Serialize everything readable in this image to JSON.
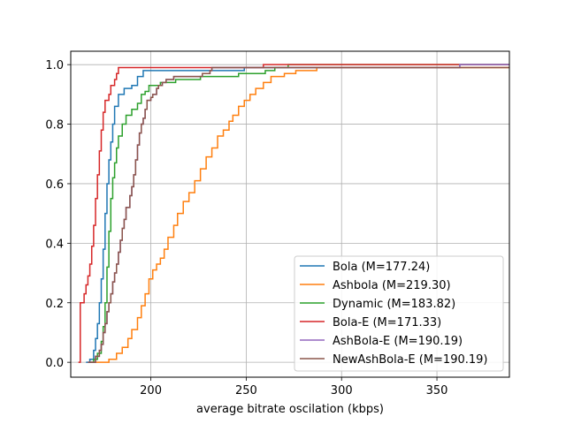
{
  "chart_data": {
    "type": "line",
    "subtype": "step-ecdf",
    "xlabel": "average bitrate oscilation (kbps)",
    "ylabel": "",
    "xlim": [
      158,
      388
    ],
    "ylim": [
      -0.05,
      1.045
    ],
    "xticks": [
      200,
      250,
      300,
      350
    ],
    "yticks": [
      0.0,
      0.2,
      0.4,
      0.6,
      0.8,
      1.0
    ],
    "ytick_labels": [
      "0.0",
      "0.2",
      "0.4",
      "0.6",
      "0.8",
      "1.0"
    ],
    "grid": true,
    "legend_position": "lower-right",
    "series": [
      {
        "name": "Bola (M=177.24)",
        "color": "#1f77b4",
        "points": [
          [
            166,
            0.0
          ],
          [
            168,
            0.01
          ],
          [
            170,
            0.04
          ],
          [
            171,
            0.08
          ],
          [
            172,
            0.13
          ],
          [
            173,
            0.2
          ],
          [
            174,
            0.28
          ],
          [
            175,
            0.38
          ],
          [
            176,
            0.5
          ],
          [
            177,
            0.6
          ],
          [
            178,
            0.68
          ],
          [
            179,
            0.74
          ],
          [
            180,
            0.8
          ],
          [
            181,
            0.86
          ],
          [
            183,
            0.9
          ],
          [
            186,
            0.92
          ],
          [
            190,
            0.93
          ],
          [
            193,
            0.96
          ],
          [
            196,
            0.98
          ],
          [
            205,
            0.98
          ],
          [
            249,
            0.99
          ],
          [
            362,
            1.0
          ],
          [
            388,
            1.0
          ]
        ]
      },
      {
        "name": "Ashbola (M=219.30)",
        "color": "#ff7f0e",
        "points": [
          [
            168,
            0.0
          ],
          [
            178,
            0.01
          ],
          [
            182,
            0.03
          ],
          [
            185,
            0.05
          ],
          [
            188,
            0.08
          ],
          [
            190,
            0.11
          ],
          [
            193,
            0.15
          ],
          [
            195,
            0.19
          ],
          [
            197,
            0.23
          ],
          [
            199,
            0.28
          ],
          [
            201,
            0.31
          ],
          [
            203,
            0.33
          ],
          [
            205,
            0.35
          ],
          [
            207,
            0.38
          ],
          [
            209,
            0.42
          ],
          [
            212,
            0.46
          ],
          [
            214,
            0.5
          ],
          [
            217,
            0.54
          ],
          [
            220,
            0.57
          ],
          [
            223,
            0.61
          ],
          [
            226,
            0.65
          ],
          [
            229,
            0.69
          ],
          [
            232,
            0.72
          ],
          [
            235,
            0.76
          ],
          [
            238,
            0.78
          ],
          [
            241,
            0.81
          ],
          [
            243,
            0.83
          ],
          [
            246,
            0.86
          ],
          [
            249,
            0.88
          ],
          [
            252,
            0.9
          ],
          [
            255,
            0.92
          ],
          [
            259,
            0.94
          ],
          [
            263,
            0.96
          ],
          [
            270,
            0.97
          ],
          [
            276,
            0.98
          ],
          [
            287,
            0.99
          ],
          [
            388,
            0.99
          ]
        ]
      },
      {
        "name": "Dynamic (M=183.82)",
        "color": "#2ca02c",
        "points": [
          [
            168,
            0.0
          ],
          [
            170,
            0.01
          ],
          [
            172,
            0.03
          ],
          [
            174,
            0.07
          ],
          [
            175,
            0.12
          ],
          [
            176,
            0.2
          ],
          [
            177,
            0.32
          ],
          [
            178,
            0.44
          ],
          [
            179,
            0.55
          ],
          [
            180,
            0.62
          ],
          [
            181,
            0.67
          ],
          [
            182,
            0.72
          ],
          [
            183,
            0.76
          ],
          [
            185,
            0.8
          ],
          [
            187,
            0.83
          ],
          [
            190,
            0.85
          ],
          [
            193,
            0.87
          ],
          [
            195,
            0.9
          ],
          [
            197,
            0.91
          ],
          [
            199,
            0.93
          ],
          [
            205,
            0.94
          ],
          [
            213,
            0.95
          ],
          [
            226,
            0.96
          ],
          [
            246,
            0.97
          ],
          [
            260,
            0.98
          ],
          [
            265,
            0.99
          ],
          [
            272,
            1.0
          ],
          [
            388,
            1.0
          ]
        ]
      },
      {
        "name": "Bola-E (M=171.33)",
        "color": "#d62728",
        "points": [
          [
            162,
            0.0
          ],
          [
            163,
            0.2
          ],
          [
            165,
            0.23
          ],
          [
            166,
            0.26
          ],
          [
            167,
            0.29
          ],
          [
            168,
            0.33
          ],
          [
            169,
            0.39
          ],
          [
            170,
            0.46
          ],
          [
            171,
            0.55
          ],
          [
            172,
            0.63
          ],
          [
            173,
            0.71
          ],
          [
            174,
            0.78
          ],
          [
            175,
            0.84
          ],
          [
            176,
            0.88
          ],
          [
            178,
            0.9
          ],
          [
            179,
            0.93
          ],
          [
            181,
            0.95
          ],
          [
            182,
            0.97
          ],
          [
            183,
            0.99
          ],
          [
            259,
            1.0
          ],
          [
            388,
            1.0
          ]
        ]
      },
      {
        "name": "AshBola-E (M=190.19)",
        "color": "#9467bd",
        "points": [
          [
            167,
            0.0
          ],
          [
            171,
            0.02
          ],
          [
            173,
            0.04
          ],
          [
            174,
            0.06
          ],
          [
            175,
            0.1
          ],
          [
            176,
            0.13
          ],
          [
            177,
            0.17
          ],
          [
            178,
            0.2
          ],
          [
            179,
            0.23
          ],
          [
            180,
            0.27
          ],
          [
            181,
            0.3
          ],
          [
            182,
            0.33
          ],
          [
            183,
            0.37
          ],
          [
            184,
            0.41
          ],
          [
            185,
            0.45
          ],
          [
            186,
            0.48
          ],
          [
            187,
            0.52
          ],
          [
            189,
            0.56
          ],
          [
            190,
            0.59
          ],
          [
            191,
            0.63
          ],
          [
            192,
            0.68
          ],
          [
            193,
            0.73
          ],
          [
            194,
            0.77
          ],
          [
            195,
            0.8
          ],
          [
            196,
            0.82
          ],
          [
            197,
            0.85
          ],
          [
            198,
            0.88
          ],
          [
            200,
            0.89
          ],
          [
            201,
            0.9
          ],
          [
            203,
            0.92
          ],
          [
            204,
            0.93
          ],
          [
            206,
            0.94
          ],
          [
            208,
            0.95
          ],
          [
            212,
            0.96
          ],
          [
            227,
            0.97
          ],
          [
            231,
            0.98
          ],
          [
            232,
            0.99
          ],
          [
            362,
            1.0
          ],
          [
            388,
            1.0
          ]
        ]
      },
      {
        "name": "NewAshBola-E (M=190.19)",
        "color": "#8c564b",
        "points": [
          [
            167,
            0.0
          ],
          [
            171,
            0.02
          ],
          [
            173,
            0.04
          ],
          [
            174,
            0.06
          ],
          [
            175,
            0.1
          ],
          [
            176,
            0.13
          ],
          [
            177,
            0.17
          ],
          [
            178,
            0.2
          ],
          [
            179,
            0.23
          ],
          [
            180,
            0.27
          ],
          [
            181,
            0.3
          ],
          [
            182,
            0.33
          ],
          [
            183,
            0.37
          ],
          [
            184,
            0.41
          ],
          [
            185,
            0.45
          ],
          [
            186,
            0.48
          ],
          [
            187,
            0.52
          ],
          [
            189,
            0.56
          ],
          [
            190,
            0.59
          ],
          [
            191,
            0.63
          ],
          [
            192,
            0.68
          ],
          [
            193,
            0.73
          ],
          [
            194,
            0.77
          ],
          [
            195,
            0.8
          ],
          [
            196,
            0.82
          ],
          [
            197,
            0.85
          ],
          [
            198,
            0.88
          ],
          [
            200,
            0.89
          ],
          [
            201,
            0.9
          ],
          [
            203,
            0.92
          ],
          [
            204,
            0.93
          ],
          [
            206,
            0.94
          ],
          [
            208,
            0.95
          ],
          [
            212,
            0.96
          ],
          [
            227,
            0.97
          ],
          [
            231,
            0.98
          ],
          [
            232,
            0.99
          ],
          [
            388,
            0.99
          ]
        ]
      }
    ]
  }
}
